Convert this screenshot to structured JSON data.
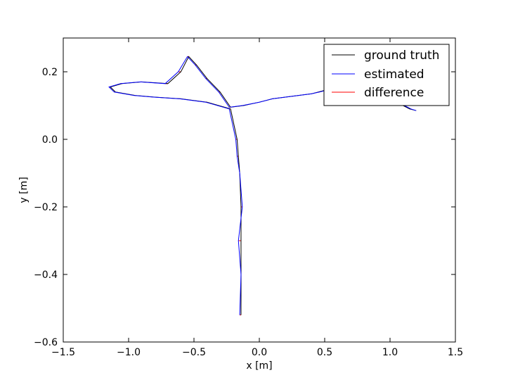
{
  "chart_data": {
    "type": "line",
    "xlabel": "x [m]",
    "ylabel": "y [m]",
    "xlim": [
      -1.5,
      1.5
    ],
    "ylim": [
      -0.6,
      0.3
    ],
    "xticks": [
      -1.5,
      -1.0,
      -0.5,
      0.0,
      0.5,
      1.0,
      1.5
    ],
    "yticks": [
      -0.6,
      -0.4,
      -0.2,
      0.0,
      0.2
    ],
    "xtick_labels": [
      "−1.5",
      "−1.0",
      "−0.5",
      "0.0",
      "0.5",
      "1.0",
      "1.5"
    ],
    "ytick_labels": [
      "−0.6",
      "−0.4",
      "−0.2",
      "0.0",
      "0.2"
    ],
    "grid": false,
    "legend": {
      "location": "upper-right",
      "entries": [
        "ground truth",
        "estimated",
        "difference"
      ]
    },
    "series": [
      {
        "name": "ground truth",
        "color": "#000000",
        "x": [
          -0.14,
          -0.14,
          -0.14,
          -0.14,
          -0.15,
          -0.16,
          -0.17,
          -0.22,
          -0.4,
          -0.6,
          -0.8,
          -0.95,
          -1.1,
          -1.14,
          -1.05,
          -0.9,
          -0.7,
          -0.6,
          -0.54,
          -0.48,
          -0.4,
          -0.3,
          -0.22,
          -0.12,
          0.0,
          0.1,
          0.2,
          0.3,
          0.4,
          0.45,
          0.5,
          0.6,
          0.7,
          0.8,
          1.0,
          1.1,
          1.15,
          1.2
        ],
        "y": [
          -0.52,
          -0.4,
          -0.3,
          -0.2,
          -0.1,
          -0.05,
          0.0,
          0.09,
          0.11,
          0.12,
          0.125,
          0.13,
          0.14,
          0.155,
          0.165,
          0.17,
          0.165,
          0.2,
          0.245,
          0.22,
          0.18,
          0.14,
          0.095,
          0.1,
          0.11,
          0.12,
          0.125,
          0.13,
          0.135,
          0.14,
          0.145,
          0.14,
          0.135,
          0.13,
          0.12,
          0.1,
          0.09,
          0.085
        ]
      },
      {
        "name": "estimated",
        "color": "#0000ff",
        "x": [
          -0.15,
          -0.14,
          -0.16,
          -0.13,
          -0.15,
          -0.17,
          -0.18,
          -0.23,
          -0.41,
          -0.61,
          -0.81,
          -0.96,
          -1.11,
          -1.15,
          -1.06,
          -0.91,
          -0.72,
          -0.62,
          -0.55,
          -0.49,
          -0.41,
          -0.31,
          -0.23,
          -0.13,
          0.0,
          0.1,
          0.2,
          0.3,
          0.4,
          0.46,
          0.51,
          0.61,
          0.71,
          0.81,
          1.01,
          1.11,
          1.16,
          1.2
        ],
        "y": [
          -0.52,
          -0.4,
          -0.3,
          -0.2,
          -0.1,
          -0.05,
          0.0,
          0.09,
          0.11,
          0.12,
          0.125,
          0.13,
          0.14,
          0.155,
          0.165,
          0.17,
          0.165,
          0.2,
          0.245,
          0.22,
          0.18,
          0.14,
          0.095,
          0.1,
          0.11,
          0.12,
          0.125,
          0.13,
          0.135,
          0.14,
          0.145,
          0.14,
          0.135,
          0.13,
          0.12,
          0.1,
          0.09,
          0.085
        ]
      }
    ]
  }
}
